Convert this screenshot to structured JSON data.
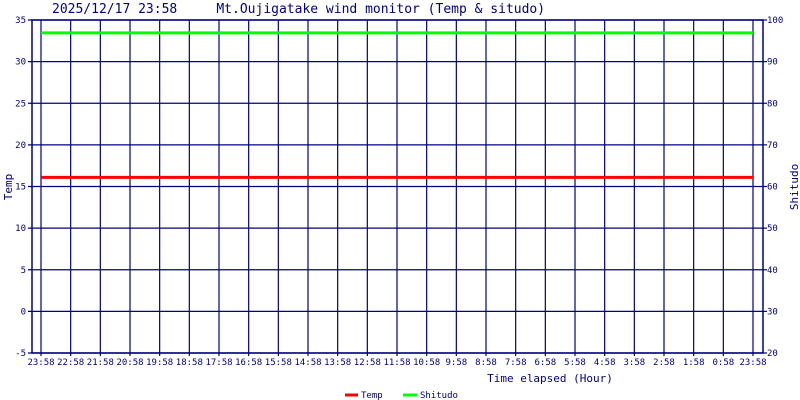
{
  "chart_data": {
    "type": "line",
    "title": "2025/12/17 23:58     Mt.Oujigatake wind monitor (Temp & situdo)",
    "xlabel": "Time elapsed (Hour)",
    "ylabel": "Temp",
    "y2label": "Shitudo",
    "ylim": [
      -5,
      35
    ],
    "y2lim": [
      20,
      100
    ],
    "yticks": [
      -5,
      0,
      5,
      10,
      15,
      20,
      25,
      30,
      35
    ],
    "y2ticks": [
      20,
      30,
      40,
      50,
      60,
      70,
      80,
      90,
      100
    ],
    "x_tick_labels": [
      "23:58",
      "22:58",
      "21:58",
      "20:58",
      "19:58",
      "18:58",
      "17:58",
      "16:58",
      "15:58",
      "14:58",
      "13:58",
      "12:58",
      "11:58",
      "10:58",
      "9:58",
      "8:58",
      "7:58",
      "6:58",
      "5:58",
      "4:58",
      "3:58",
      "2:58",
      "1:58",
      "0:58",
      "23:58"
    ],
    "grid": true,
    "legend_position": "bottom-center",
    "series": [
      {
        "name": "Temp",
        "axis": "left",
        "color": "#ff0000",
        "values": [
          16.1,
          16.1
        ]
      },
      {
        "name": "Shitudo",
        "axis": "right",
        "color": "#00ff00",
        "values": [
          96.9,
          96.9
        ]
      }
    ],
    "colors": {
      "axis": "#000080",
      "grid": "#000080"
    }
  }
}
